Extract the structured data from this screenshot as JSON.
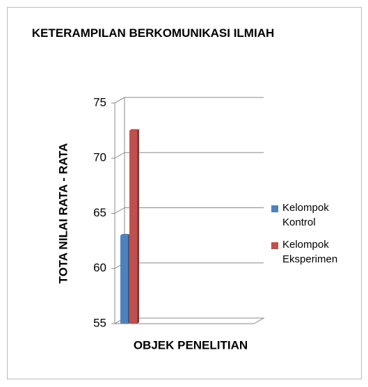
{
  "chart_data": {
    "type": "bar3d",
    "title": "KETERAMPILAN BERKOMUNIKASI ILMIAH",
    "xlabel": "OBJEK PENELITIAN",
    "ylabel": "TOTA NILAI RATA - RATA",
    "categories": [
      null
    ],
    "series": [
      {
        "name": "Kelompok Kontrol",
        "color": "#4f81bd",
        "values": [
          63
        ]
      },
      {
        "name": "Kelompok Eksperimen",
        "color": "#c0504d",
        "values": [
          72.5
        ]
      }
    ],
    "ylim": [
      55,
      75
    ],
    "yticks": [
      55,
      60,
      65,
      70,
      75
    ],
    "grid": true,
    "legend": "right"
  }
}
